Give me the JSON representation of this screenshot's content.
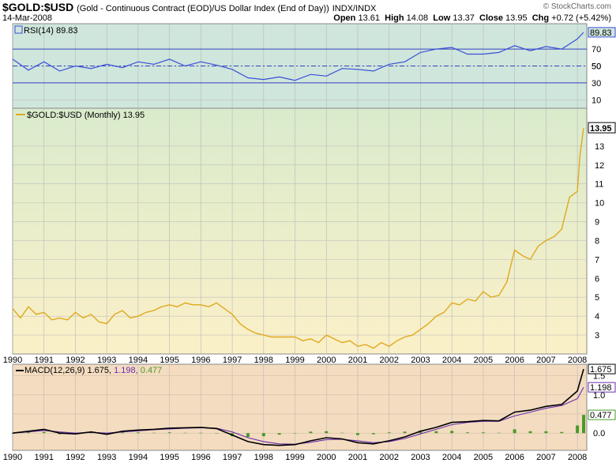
{
  "header": {
    "symbol": "$GOLD:$USD",
    "subtitle": "(Gold - Continuous Contract (EOD)/US Dollar Index (End of Day))",
    "exchange": "INDX/INDX",
    "date": "14-Mar-2008",
    "open_label": "Open",
    "open": "13.61",
    "high_label": "High",
    "high": "14.08",
    "low_label": "Low",
    "low": "13.37",
    "close_label": "Close",
    "close": "13.95",
    "chg_label": "Chg",
    "chg": "+0.72 (+5.42%)",
    "brand": "© StockCharts.com"
  },
  "colors": {
    "rsi_bg": "#cfe6dc",
    "price_bg_top": "#d9ebcc",
    "price_bg_bottom": "#fbf0c8",
    "macd_bg": "#f4dcc0",
    "rsi_line": "#3a4fd8",
    "price_line": "#e0a820",
    "macd_line": "#000000",
    "signal_line": "#6a2fb0",
    "histogram": "#4a9a2a"
  },
  "chart_data": [
    {
      "type": "line",
      "panel": "rsi",
      "legend": "RSI(14) 89.83",
      "last_label": "89.83",
      "ylim": [
        0,
        100
      ],
      "ticks": [
        "10",
        "30",
        "50",
        "70"
      ],
      "x": [
        1990,
        1990.5,
        1991,
        1991.5,
        1992,
        1992.5,
        1993,
        1993.5,
        1994,
        1994.5,
        1995,
        1995.5,
        1996,
        1996.5,
        1997,
        1997.5,
        1998,
        1998.5,
        1999,
        1999.5,
        2000,
        2000.5,
        2001,
        2001.5,
        2002,
        2002.5,
        2003,
        2003.5,
        2004,
        2004.5,
        2005,
        2005.5,
        2006,
        2006.5,
        2007,
        2007.5,
        2008,
        2008.2
      ],
      "values": [
        58,
        45,
        55,
        44,
        50,
        47,
        52,
        48,
        55,
        52,
        58,
        50,
        55,
        51,
        46,
        36,
        34,
        37,
        33,
        40,
        38,
        47,
        46,
        44,
        52,
        55,
        66,
        70,
        72,
        64,
        64,
        66,
        74,
        68,
        73,
        70,
        82,
        89.83
      ]
    },
    {
      "type": "line",
      "panel": "price",
      "legend": "$GOLD:$USD (Monthly) 13.95",
      "last_label": "13.95",
      "ylim": [
        2,
        15
      ],
      "ticks": [
        "3",
        "4",
        "5",
        "6",
        "7",
        "8",
        "9",
        "10",
        "11",
        "12",
        "13"
      ],
      "x": [
        1990,
        1990.25,
        1990.5,
        1990.75,
        1991,
        1991.25,
        1991.5,
        1991.75,
        1992,
        1992.25,
        1992.5,
        1992.75,
        1993,
        1993.25,
        1993.5,
        1993.75,
        1994,
        1994.25,
        1994.5,
        1994.75,
        1995,
        1995.25,
        1995.5,
        1995.75,
        1996,
        1996.25,
        1996.5,
        1996.75,
        1997,
        1997.25,
        1997.5,
        1997.75,
        1998,
        1998.25,
        1998.5,
        1998.75,
        1999,
        1999.25,
        1999.5,
        1999.75,
        2000,
        2000.25,
        2000.5,
        2000.75,
        2001,
        2001.25,
        2001.5,
        2001.75,
        2002,
        2002.25,
        2002.5,
        2002.75,
        2003,
        2003.25,
        2003.5,
        2003.75,
        2004,
        2004.25,
        2004.5,
        2004.75,
        2005,
        2005.25,
        2005.5,
        2005.75,
        2006,
        2006.25,
        2006.5,
        2006.75,
        2007,
        2007.25,
        2007.5,
        2007.75,
        2008,
        2008.08,
        2008.2
      ],
      "values": [
        4.4,
        3.9,
        4.5,
        4.1,
        4.2,
        3.8,
        3.9,
        3.8,
        4.2,
        3.9,
        4.1,
        3.7,
        3.6,
        4.1,
        4.3,
        3.9,
        4.0,
        4.2,
        4.3,
        4.5,
        4.6,
        4.5,
        4.7,
        4.6,
        4.6,
        4.5,
        4.7,
        4.4,
        4.1,
        3.6,
        3.3,
        3.1,
        3.0,
        2.9,
        2.9,
        2.9,
        2.9,
        2.7,
        2.8,
        2.6,
        3.0,
        2.8,
        2.6,
        2.7,
        2.4,
        2.5,
        2.3,
        2.6,
        2.4,
        2.7,
        2.9,
        3.0,
        3.3,
        3.6,
        4.0,
        4.2,
        4.7,
        4.6,
        4.9,
        4.8,
        5.3,
        5.0,
        5.1,
        5.8,
        7.5,
        7.2,
        7.0,
        7.7,
        8.0,
        8.2,
        8.6,
        10.3,
        10.6,
        12.5,
        13.95
      ]
    },
    {
      "type": "line",
      "panel": "macd",
      "legend_prefix": "MACD(12,26,9)",
      "macd_value": "1.675",
      "signal_value": "1.198",
      "hist_value": "0.477",
      "ylim": [
        -0.45,
        1.8
      ],
      "ticks": [
        "0.0",
        "0.5",
        "1.0",
        "1.5"
      ],
      "x": [
        1990,
        1990.5,
        1991,
        1991.5,
        1992,
        1992.5,
        1993,
        1993.5,
        1994,
        1994.5,
        1995,
        1995.5,
        1996,
        1996.5,
        1997,
        1997.5,
        1998,
        1998.5,
        1999,
        1999.5,
        2000,
        2000.5,
        2001,
        2001.5,
        2002,
        2002.5,
        2003,
        2003.5,
        2004,
        2004.5,
        2005,
        2005.5,
        2006,
        2006.5,
        2007,
        2007.5,
        2008,
        2008.2
      ],
      "series": [
        {
          "name": "MACD",
          "values": [
            0.0,
            0.05,
            0.1,
            0.0,
            -0.02,
            0.03,
            -0.03,
            0.05,
            0.08,
            0.1,
            0.13,
            0.14,
            0.15,
            0.12,
            -0.05,
            -0.22,
            -0.3,
            -0.32,
            -0.3,
            -0.2,
            -0.12,
            -0.15,
            -0.25,
            -0.28,
            -0.2,
            -0.1,
            0.05,
            0.15,
            0.28,
            0.3,
            0.33,
            0.32,
            0.55,
            0.6,
            0.7,
            0.75,
            1.1,
            1.675
          ]
        },
        {
          "name": "Signal",
          "values": [
            0.0,
            0.03,
            0.07,
            0.03,
            0.0,
            0.02,
            0.0,
            0.03,
            0.06,
            0.09,
            0.11,
            0.13,
            0.14,
            0.13,
            0.03,
            -0.12,
            -0.22,
            -0.28,
            -0.29,
            -0.24,
            -0.17,
            -0.16,
            -0.2,
            -0.25,
            -0.22,
            -0.14,
            -0.02,
            0.1,
            0.22,
            0.28,
            0.31,
            0.31,
            0.45,
            0.55,
            0.65,
            0.72,
            0.9,
            1.198
          ]
        },
        {
          "name": "Histogram",
          "values": [
            0.0,
            0.02,
            0.03,
            -0.03,
            -0.02,
            0.01,
            -0.03,
            0.02,
            0.02,
            0.01,
            0.02,
            0.01,
            0.01,
            -0.01,
            -0.08,
            -0.1,
            -0.08,
            -0.04,
            -0.01,
            0.04,
            0.05,
            0.01,
            -0.05,
            -0.03,
            0.02,
            0.04,
            0.07,
            0.05,
            0.06,
            0.02,
            0.02,
            0.01,
            0.1,
            0.05,
            0.05,
            0.03,
            0.2,
            0.477
          ]
        }
      ]
    }
  ],
  "x_axis": {
    "years": [
      "1990",
      "1991",
      "1992",
      "1993",
      "1994",
      "1995",
      "1996",
      "1997",
      "1998",
      "1999",
      "2000",
      "2001",
      "2002",
      "2003",
      "2004",
      "2005",
      "2006",
      "2007",
      "2008"
    ]
  }
}
